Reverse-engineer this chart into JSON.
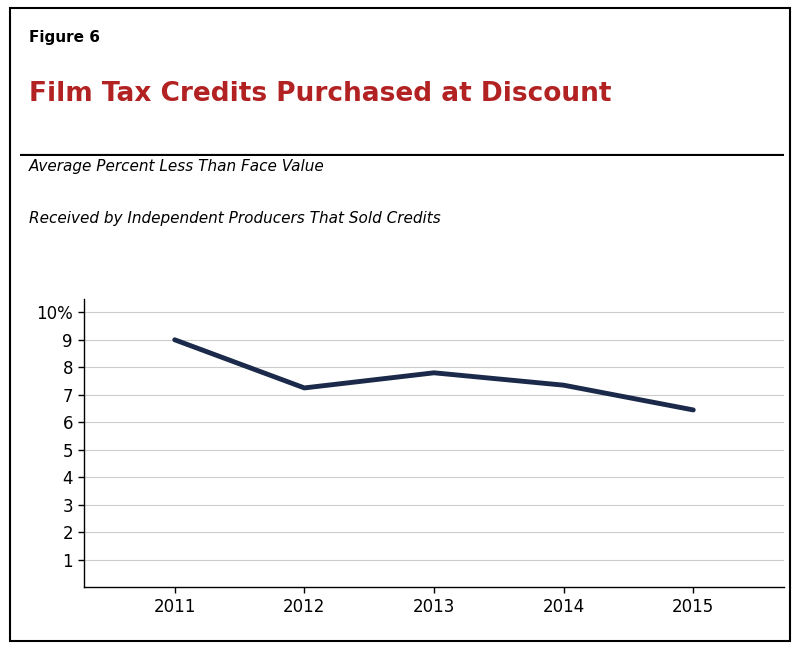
{
  "figure_label": "Figure 6",
  "title": "Film Tax Credits Purchased at Discount",
  "subtitle_line1": "Average Percent Less Than Face Value",
  "subtitle_line2": "Received by Independent Producers That Sold Credits",
  "x_values": [
    2011,
    2012,
    2013,
    2014,
    2015
  ],
  "y_values": [
    9.0,
    7.25,
    7.8,
    7.35,
    6.45
  ],
  "line_color": "#1b2a4a",
  "line_width": 3.5,
  "ylim": [
    0,
    10.5
  ],
  "yticks": [
    1,
    2,
    3,
    4,
    5,
    6,
    7,
    8,
    9
  ],
  "ytick_top_label": "10%",
  "ytick_top_value": 10,
  "grid_color": "#cccccc",
  "background_color": "#ffffff",
  "title_color": "#b22222",
  "figure_label_color": "#000000",
  "subtitle_color": "#000000",
  "tick_label_color": "#000000",
  "xlim_left": 2010.3,
  "xlim_right": 2015.7,
  "figure_label_fontsize": 11,
  "title_fontsize": 19,
  "subtitle_fontsize": 11,
  "tick_fontsize": 12
}
